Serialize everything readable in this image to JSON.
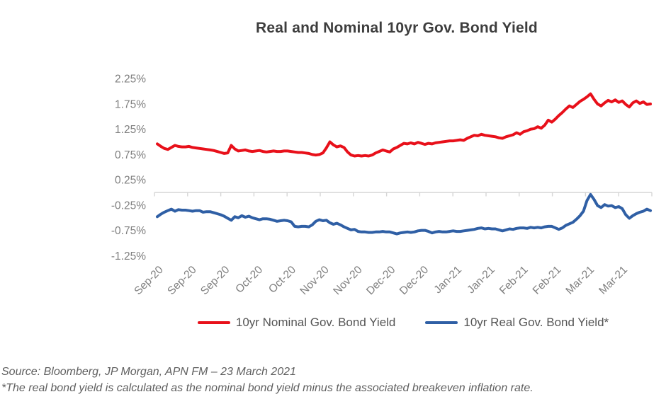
{
  "title": "Real and Nominal 10yr Gov. Bond Yield",
  "legend": [
    {
      "label": "10yr Nominal Gov. Bond Yield",
      "color": "#e8101a"
    },
    {
      "label": "10yr Real Gov. Bond Yield*",
      "color": "#2f5fa5"
    }
  ],
  "footnotes": {
    "source": "Source: Bloomberg, JP Morgan, APN FM – 23 March 2021",
    "note": "*The real bond yield is calculated as the nominal bond yield minus the associated breakeven inflation rate."
  },
  "chart_data": {
    "type": "line",
    "title": "Real and Nominal 10yr Gov. Bond Yield",
    "xlabel": "",
    "ylabel": "",
    "grid": false,
    "legend_position": "bottom",
    "axis_color": "#d6d6d6",
    "label_color": "#7f7f7f",
    "x_labels": [
      "Sep-20",
      "Sep-20",
      "Sep-20",
      "Oct-20",
      "Oct-20",
      "Nov-20",
      "Nov-20",
      "Dec-20",
      "Dec-20",
      "Jan-21",
      "Jan-21",
      "Feb-21",
      "Feb-21",
      "Mar-21",
      "Mar-21"
    ],
    "yticks": {
      "labels": [
        "2.25%",
        "1.75%",
        "1.25%",
        "0.75%",
        "0.25%",
        "-0.25%",
        "-0.75%",
        "-1.25%"
      ],
      "values": [
        2.25,
        1.75,
        1.25,
        0.75,
        0.25,
        -0.25,
        -0.75,
        -1.25
      ]
    },
    "ylim": [
      -1.45,
      2.45
    ],
    "series": [
      {
        "name": "10yr Nominal Gov. Bond Yield",
        "color": "#e8101a",
        "values": [
          0.96,
          0.91,
          0.87,
          0.85,
          0.89,
          0.93,
          0.91,
          0.9,
          0.9,
          0.91,
          0.89,
          0.88,
          0.87,
          0.86,
          0.85,
          0.84,
          0.83,
          0.81,
          0.79,
          0.77,
          0.78,
          0.93,
          0.86,
          0.82,
          0.83,
          0.84,
          0.82,
          0.81,
          0.82,
          0.83,
          0.81,
          0.8,
          0.81,
          0.82,
          0.81,
          0.81,
          0.82,
          0.82,
          0.81,
          0.8,
          0.79,
          0.79,
          0.78,
          0.77,
          0.75,
          0.74,
          0.75,
          0.78,
          0.88,
          1.0,
          0.94,
          0.9,
          0.92,
          0.89,
          0.8,
          0.74,
          0.72,
          0.73,
          0.72,
          0.73,
          0.72,
          0.74,
          0.78,
          0.81,
          0.84,
          0.82,
          0.8,
          0.86,
          0.89,
          0.93,
          0.97,
          0.96,
          0.98,
          0.96,
          0.99,
          0.97,
          0.95,
          0.97,
          0.96,
          0.98,
          0.99,
          1.0,
          1.01,
          1.02,
          1.02,
          1.03,
          1.04,
          1.03,
          1.07,
          1.1,
          1.13,
          1.12,
          1.15,
          1.13,
          1.12,
          1.11,
          1.1,
          1.08,
          1.07,
          1.1,
          1.12,
          1.14,
          1.18,
          1.15,
          1.2,
          1.22,
          1.25,
          1.26,
          1.3,
          1.27,
          1.33,
          1.43,
          1.39,
          1.45,
          1.52,
          1.58,
          1.65,
          1.71,
          1.68,
          1.74,
          1.8,
          1.84,
          1.89,
          1.95,
          1.84,
          1.75,
          1.71,
          1.77,
          1.82,
          1.79,
          1.83,
          1.78,
          1.81,
          1.74,
          1.69,
          1.77,
          1.81,
          1.76,
          1.79,
          1.74,
          1.75
        ]
      },
      {
        "name": "10yr Real Gov. Bond Yield*",
        "color": "#2f5fa5",
        "values": [
          -0.48,
          -0.43,
          -0.39,
          -0.36,
          -0.33,
          -0.37,
          -0.34,
          -0.35,
          -0.35,
          -0.36,
          -0.37,
          -0.36,
          -0.36,
          -0.39,
          -0.38,
          -0.38,
          -0.4,
          -0.42,
          -0.44,
          -0.47,
          -0.51,
          -0.55,
          -0.48,
          -0.5,
          -0.46,
          -0.49,
          -0.47,
          -0.5,
          -0.52,
          -0.54,
          -0.52,
          -0.52,
          -0.53,
          -0.55,
          -0.57,
          -0.56,
          -0.55,
          -0.56,
          -0.58,
          -0.67,
          -0.68,
          -0.67,
          -0.67,
          -0.68,
          -0.64,
          -0.57,
          -0.54,
          -0.56,
          -0.55,
          -0.6,
          -0.63,
          -0.61,
          -0.64,
          -0.68,
          -0.71,
          -0.74,
          -0.73,
          -0.77,
          -0.78,
          -0.78,
          -0.79,
          -0.79,
          -0.78,
          -0.78,
          -0.77,
          -0.78,
          -0.78,
          -0.8,
          -0.82,
          -0.8,
          -0.79,
          -0.78,
          -0.79,
          -0.78,
          -0.76,
          -0.75,
          -0.75,
          -0.77,
          -0.8,
          -0.78,
          -0.77,
          -0.78,
          -0.78,
          -0.77,
          -0.76,
          -0.77,
          -0.77,
          -0.76,
          -0.75,
          -0.74,
          -0.73,
          -0.71,
          -0.7,
          -0.72,
          -0.71,
          -0.72,
          -0.72,
          -0.74,
          -0.76,
          -0.74,
          -0.72,
          -0.73,
          -0.71,
          -0.7,
          -0.7,
          -0.71,
          -0.69,
          -0.7,
          -0.69,
          -0.7,
          -0.68,
          -0.67,
          -0.67,
          -0.7,
          -0.73,
          -0.7,
          -0.65,
          -0.62,
          -0.59,
          -0.53,
          -0.46,
          -0.37,
          -0.16,
          -0.04,
          -0.14,
          -0.26,
          -0.3,
          -0.24,
          -0.27,
          -0.26,
          -0.3,
          -0.28,
          -0.32,
          -0.44,
          -0.51,
          -0.46,
          -0.42,
          -0.39,
          -0.37,
          -0.33,
          -0.36
        ]
      }
    ]
  }
}
